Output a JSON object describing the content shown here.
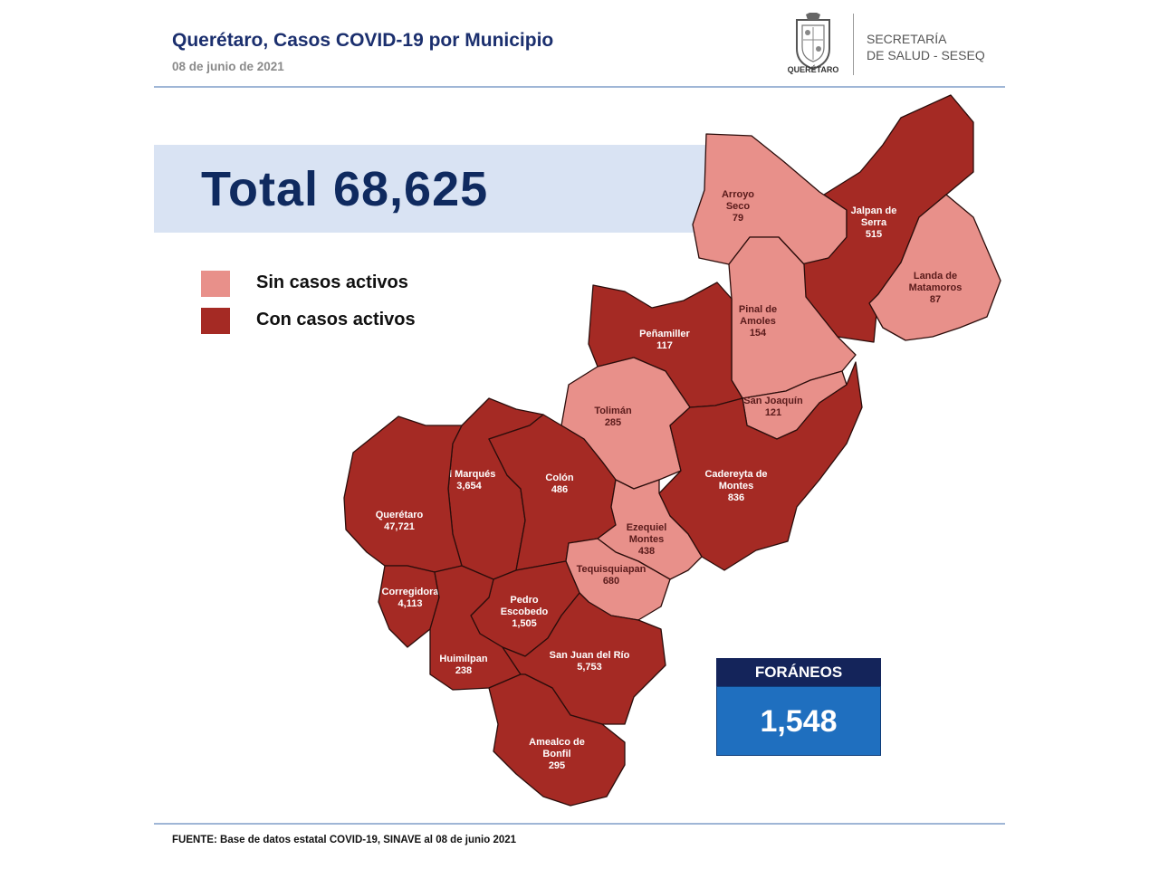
{
  "header": {
    "title": "Querétaro, Casos COVID-19 por Municipio",
    "date": "08 de junio  de 2021",
    "logo_text": "QUERÉTARO",
    "secretaria_line1": "SECRETARÍA",
    "secretaria_line2": "DE SALUD - SESEQ"
  },
  "total": {
    "text": "Total 68,625",
    "value": 68625
  },
  "legend": {
    "inactive": {
      "label": "Sin casos activos",
      "color": "#e8908a"
    },
    "active": {
      "label": "Con casos activos",
      "color": "#a52a24"
    }
  },
  "municipios": [
    {
      "id": "arroyo-seco",
      "name_lines": [
        "Arroyo",
        "Seco"
      ],
      "count": "79",
      "active": false
    },
    {
      "id": "jalpan",
      "name_lines": [
        "Jalpan de",
        "Serra"
      ],
      "count": "515",
      "active": true
    },
    {
      "id": "landa",
      "name_lines": [
        "Landa de",
        "Matamoros"
      ],
      "count": "87",
      "active": false
    },
    {
      "id": "pinal",
      "name_lines": [
        "Pinal de",
        "Amoles"
      ],
      "count": "154",
      "active": false
    },
    {
      "id": "penamiller",
      "name_lines": [
        "Peñamiller"
      ],
      "count": "117",
      "active": true
    },
    {
      "id": "san-joaquin",
      "name_lines": [
        "San Joaquín"
      ],
      "count": "121",
      "active": false
    },
    {
      "id": "toliman",
      "name_lines": [
        "Tolimán"
      ],
      "count": "285",
      "active": false
    },
    {
      "id": "cadereyta",
      "name_lines": [
        "Cadereyta de",
        "Montes"
      ],
      "count": "836",
      "active": true
    },
    {
      "id": "el-marques",
      "name_lines": [
        "El  Marqués"
      ],
      "count": "3,654",
      "active": true
    },
    {
      "id": "colon",
      "name_lines": [
        "Colón"
      ],
      "count": "486",
      "active": true
    },
    {
      "id": "queretaro",
      "name_lines": [
        "Querétaro"
      ],
      "count": "47,721",
      "active": true
    },
    {
      "id": "ezequiel",
      "name_lines": [
        "Ezequiel",
        "Montes"
      ],
      "count": "438",
      "active": false
    },
    {
      "id": "tequisquiapan",
      "name_lines": [
        "Tequisquiapan"
      ],
      "count": "680",
      "active": false
    },
    {
      "id": "corregidora",
      "name_lines": [
        "Corregidora"
      ],
      "count": "4,113",
      "active": true
    },
    {
      "id": "pedro-escobedo",
      "name_lines": [
        "Pedro",
        "Escobedo"
      ],
      "count": "1,505",
      "active": true
    },
    {
      "id": "huimilpan",
      "name_lines": [
        "Huimilpan"
      ],
      "count": "238",
      "active": true
    },
    {
      "id": "san-juan",
      "name_lines": [
        "San Juan del Río"
      ],
      "count": "5,753",
      "active": true
    },
    {
      "id": "amealco",
      "name_lines": [
        "Amealco de",
        "Bonfil"
      ],
      "count": "295",
      "active": true
    }
  ],
  "foraneos": {
    "label": "FORÁNEOS",
    "value": "1,548"
  },
  "source": "FUENTE:  Base de datos estatal COVID-19,  SINAVE  al 08 de junio  2021"
}
